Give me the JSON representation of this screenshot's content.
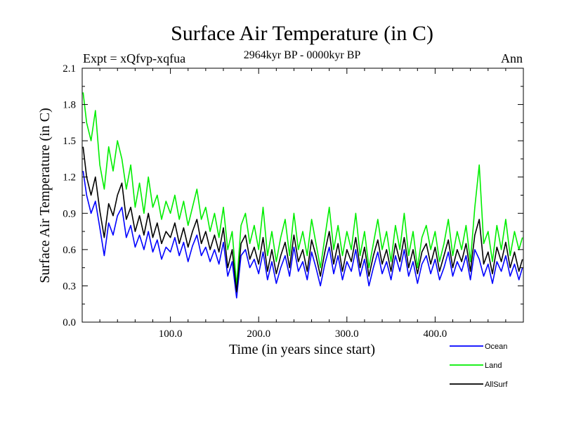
{
  "chart_data": {
    "type": "line",
    "title": "Surface Air Temperature (in C)",
    "subtitle": "2964kyr BP - 0000kyr BP",
    "experiment_label": "Expt = xQfvp-xqfua",
    "season_label": "Ann",
    "xlabel": "Time (in years since start)",
    "ylabel": "Surface Air Temperature (in C)",
    "xlim": [
      0,
      500
    ],
    "ylim": [
      0.0,
      2.1
    ],
    "x_ticks": [
      100,
      200,
      300,
      400
    ],
    "x_tick_labels": [
      "100.0",
      "200.0",
      "300.0",
      "400.0"
    ],
    "y_ticks": [
      0.0,
      0.3,
      0.6,
      0.9,
      1.2,
      1.5,
      1.8,
      2.1
    ],
    "y_tick_labels": [
      "0.0",
      "0.3",
      "0.6",
      "0.9",
      "1.2",
      "1.5",
      "1.8",
      "2.1"
    ],
    "x": [
      1,
      5,
      10,
      15,
      20,
      25,
      30,
      35,
      40,
      45,
      50,
      55,
      60,
      65,
      70,
      75,
      80,
      85,
      90,
      95,
      100,
      105,
      110,
      115,
      120,
      125,
      130,
      135,
      140,
      145,
      150,
      155,
      160,
      165,
      170,
      175,
      180,
      185,
      190,
      195,
      200,
      205,
      210,
      215,
      220,
      225,
      230,
      235,
      240,
      245,
      250,
      255,
      260,
      265,
      270,
      275,
      280,
      285,
      290,
      295,
      300,
      305,
      310,
      315,
      320,
      325,
      330,
      335,
      340,
      345,
      350,
      355,
      360,
      365,
      370,
      375,
      380,
      385,
      390,
      395,
      400,
      405,
      410,
      415,
      420,
      425,
      430,
      435,
      440,
      445,
      450,
      455,
      460,
      465,
      470,
      475,
      480,
      485,
      490,
      495,
      499
    ],
    "series": [
      {
        "name": "Ocean",
        "color": "#0000ff",
        "values": [
          1.25,
          1.05,
          0.9,
          1.0,
          0.78,
          0.55,
          0.82,
          0.72,
          0.88,
          0.95,
          0.7,
          0.8,
          0.62,
          0.72,
          0.6,
          0.75,
          0.58,
          0.68,
          0.52,
          0.62,
          0.58,
          0.7,
          0.55,
          0.66,
          0.5,
          0.63,
          0.72,
          0.55,
          0.62,
          0.5,
          0.6,
          0.48,
          0.66,
          0.38,
          0.5,
          0.2,
          0.55,
          0.6,
          0.45,
          0.52,
          0.4,
          0.58,
          0.35,
          0.5,
          0.32,
          0.45,
          0.55,
          0.38,
          0.62,
          0.42,
          0.5,
          0.35,
          0.58,
          0.45,
          0.3,
          0.48,
          0.62,
          0.4,
          0.55,
          0.35,
          0.5,
          0.42,
          0.6,
          0.38,
          0.52,
          0.3,
          0.45,
          0.58,
          0.4,
          0.5,
          0.35,
          0.55,
          0.42,
          0.6,
          0.38,
          0.5,
          0.32,
          0.48,
          0.55,
          0.4,
          0.52,
          0.35,
          0.45,
          0.58,
          0.38,
          0.5,
          0.42,
          0.55,
          0.35,
          0.6,
          0.52,
          0.38,
          0.48,
          0.32,
          0.5,
          0.42,
          0.55,
          0.38,
          0.48,
          0.35,
          0.45
        ]
      },
      {
        "name": "Land",
        "color": "#00ee00",
        "values": [
          1.9,
          1.65,
          1.5,
          1.75,
          1.3,
          1.1,
          1.45,
          1.25,
          1.5,
          1.35,
          1.1,
          1.3,
          0.95,
          1.15,
          0.9,
          1.2,
          0.95,
          1.05,
          0.85,
          1.0,
          0.9,
          1.05,
          0.85,
          1.0,
          0.8,
          0.95,
          1.1,
          0.85,
          0.95,
          0.75,
          0.9,
          0.7,
          0.95,
          0.6,
          0.75,
          0.3,
          0.8,
          0.9,
          0.65,
          0.8,
          0.6,
          0.95,
          0.55,
          0.75,
          0.5,
          0.7,
          0.85,
          0.55,
          0.9,
          0.6,
          0.75,
          0.55,
          0.85,
          0.65,
          0.45,
          0.7,
          0.95,
          0.6,
          0.8,
          0.55,
          0.75,
          0.6,
          0.9,
          0.55,
          0.75,
          0.45,
          0.65,
          0.85,
          0.6,
          0.75,
          0.5,
          0.8,
          0.6,
          0.9,
          0.55,
          0.75,
          0.45,
          0.7,
          0.8,
          0.6,
          0.75,
          0.5,
          0.65,
          0.85,
          0.55,
          0.75,
          0.6,
          0.8,
          0.5,
          0.95,
          1.3,
          0.65,
          0.75,
          0.5,
          0.8,
          0.6,
          0.85,
          0.55,
          0.75,
          0.6,
          0.7
        ]
      },
      {
        "name": "AllSurf",
        "color": "#000000",
        "values": [
          1.45,
          1.2,
          1.05,
          1.2,
          0.92,
          0.7,
          0.98,
          0.88,
          1.05,
          1.15,
          0.85,
          0.95,
          0.75,
          0.88,
          0.72,
          0.9,
          0.7,
          0.82,
          0.65,
          0.75,
          0.7,
          0.82,
          0.65,
          0.78,
          0.62,
          0.75,
          0.85,
          0.65,
          0.75,
          0.6,
          0.72,
          0.58,
          0.78,
          0.45,
          0.6,
          0.25,
          0.65,
          0.72,
          0.52,
          0.62,
          0.48,
          0.7,
          0.42,
          0.6,
          0.4,
          0.55,
          0.66,
          0.45,
          0.72,
          0.5,
          0.6,
          0.42,
          0.68,
          0.55,
          0.38,
          0.58,
          0.75,
          0.48,
          0.65,
          0.42,
          0.6,
          0.5,
          0.7,
          0.45,
          0.62,
          0.38,
          0.55,
          0.68,
          0.48,
          0.6,
          0.42,
          0.65,
          0.5,
          0.7,
          0.45,
          0.6,
          0.4,
          0.58,
          0.65,
          0.48,
          0.62,
          0.42,
          0.55,
          0.68,
          0.45,
          0.6,
          0.5,
          0.65,
          0.42,
          0.72,
          0.85,
          0.48,
          0.58,
          0.4,
          0.62,
          0.5,
          0.66,
          0.45,
          0.58,
          0.42,
          0.52
        ]
      }
    ]
  }
}
